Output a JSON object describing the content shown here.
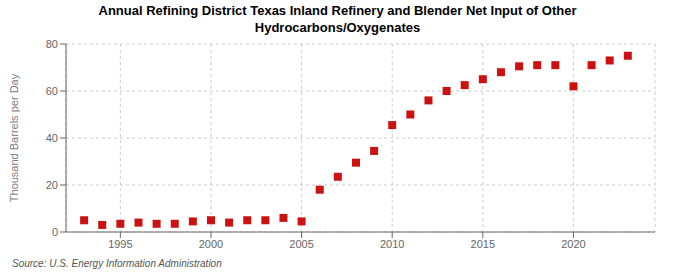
{
  "chart_data": {
    "type": "scatter",
    "title": "Annual Refining District Texas Inland Refinery and Blender Net Input of Other\nHydrocarbons/Oxygenates",
    "y_label": "Thousand Barrels per Day",
    "annotations": [
      "Source: U.S. Energy Information Administration"
    ],
    "x": [
      1993,
      1994,
      1995,
      1996,
      1997,
      1998,
      1999,
      2000,
      2001,
      2002,
      2003,
      2004,
      2005,
      2006,
      2007,
      2008,
      2009,
      2010,
      2011,
      2012,
      2013,
      2014,
      2015,
      2016,
      2017,
      2018,
      2019,
      2020,
      2021,
      2022,
      2023
    ],
    "values": [
      5.0,
      3.0,
      3.5,
      4.0,
      3.5,
      3.5,
      4.5,
      5.0,
      4.0,
      5.0,
      5.0,
      6.0,
      4.5,
      18.0,
      23.5,
      29.5,
      34.5,
      45.5,
      50.0,
      56.0,
      60.0,
      62.5,
      65.0,
      68.0,
      70.5,
      71.0,
      71.0,
      62.0,
      71.0,
      73.0,
      75.0
    ],
    "color": "#cc1111",
    "marker": "square",
    "xlim": [
      1992,
      2024.5
    ],
    "xticks": [
      1995,
      2000,
      2005,
      2010,
      2015,
      2020
    ],
    "ylim": [
      0,
      80
    ],
    "yticks": [
      0,
      20,
      40,
      60,
      80
    ],
    "grid": true
  }
}
